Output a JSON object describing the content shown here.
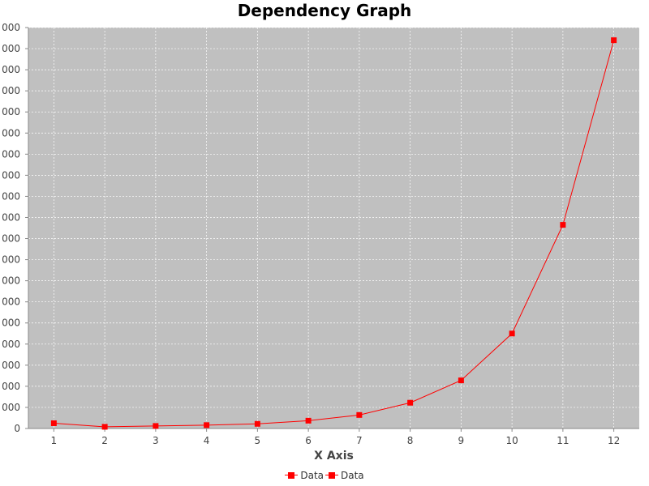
{
  "chart_data": {
    "type": "line",
    "title": "Dependency Graph",
    "xlabel": "X Axis",
    "ylabel": "",
    "categories": [
      "1",
      "2",
      "3",
      "4",
      "5",
      "6",
      "7",
      "8",
      "9",
      "10",
      "11",
      "12"
    ],
    "series": [
      {
        "name": "Data",
        "values": [
          25,
          8,
          12,
          16,
          22,
          37,
          64,
          122,
          228,
          450,
          965,
          1840
        ],
        "color": "#ff0000"
      }
    ],
    "ylim": [
      0,
      1900
    ],
    "ytick_step": 100,
    "ytick_labels_visible": "000",
    "grid": true,
    "plot_background": "#c0c0c0",
    "legend_position": "bottom",
    "legend_entries": [
      "Data",
      "Data"
    ]
  }
}
